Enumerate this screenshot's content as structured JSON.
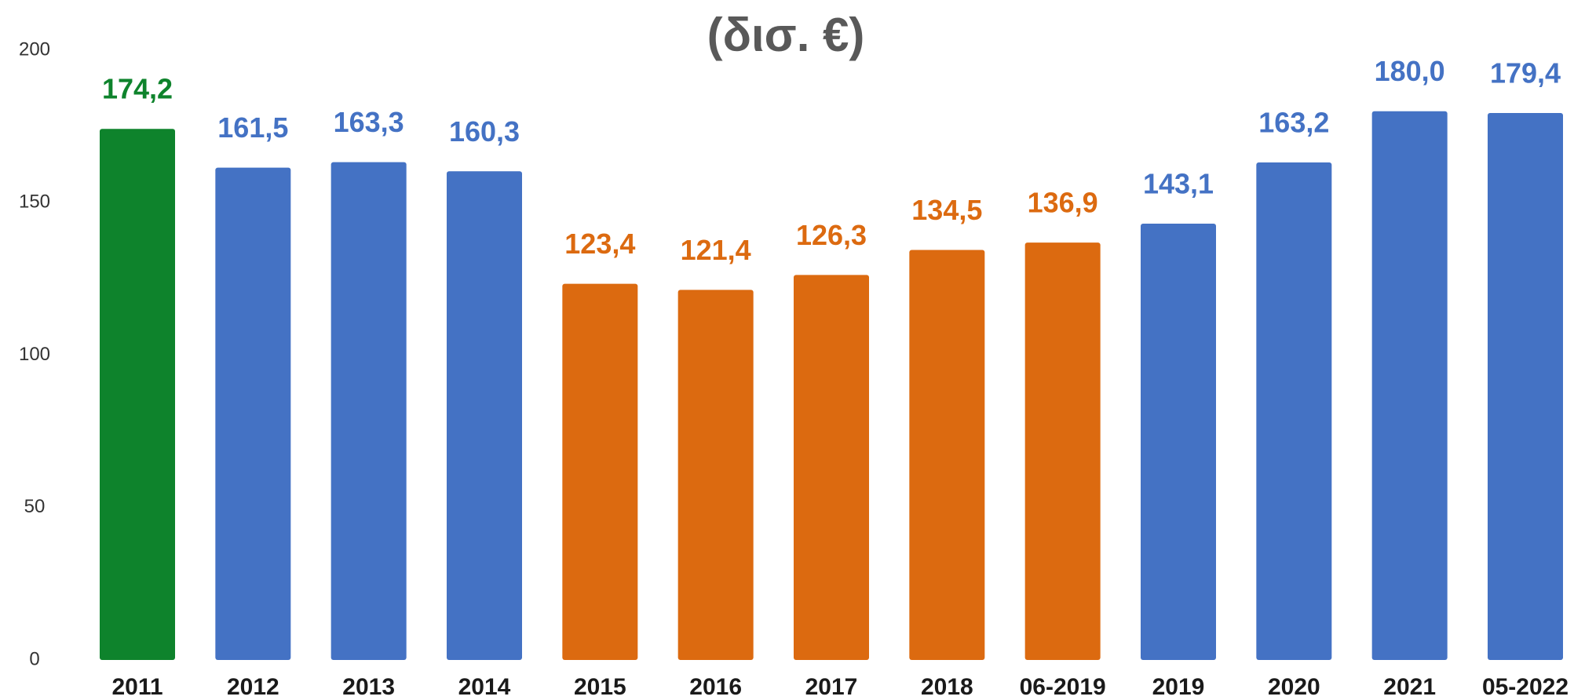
{
  "chart_data": {
    "type": "bar",
    "title": "(δισ. €)",
    "categories": [
      "2011",
      "2012",
      "2013",
      "2014",
      "2015",
      "2016",
      "2017",
      "2018",
      "06-2019",
      "2019",
      "2020",
      "2021",
      "05-2022"
    ],
    "values": [
      174.2,
      161.5,
      163.3,
      160.3,
      123.4,
      121.4,
      126.3,
      134.5,
      136.9,
      143.1,
      163.2,
      180.0,
      179.4
    ],
    "value_labels": [
      "174,2",
      "161,5",
      "163,3",
      "160,3",
      "123,4",
      "121,4",
      "126,3",
      "134,5",
      "136,9",
      "143,1",
      "163,2",
      "180,0",
      "179,4"
    ],
    "colors": [
      "#0e832c",
      "#4472c4",
      "#4472c4",
      "#4472c4",
      "#dc6a10",
      "#dc6a10",
      "#dc6a10",
      "#dc6a10",
      "#dc6a10",
      "#4472c4",
      "#4472c4",
      "#4472c4",
      "#4472c4"
    ],
    "ylim": [
      0,
      200
    ],
    "yticks": [
      0,
      50,
      100,
      150,
      200
    ],
    "grid": false
  }
}
